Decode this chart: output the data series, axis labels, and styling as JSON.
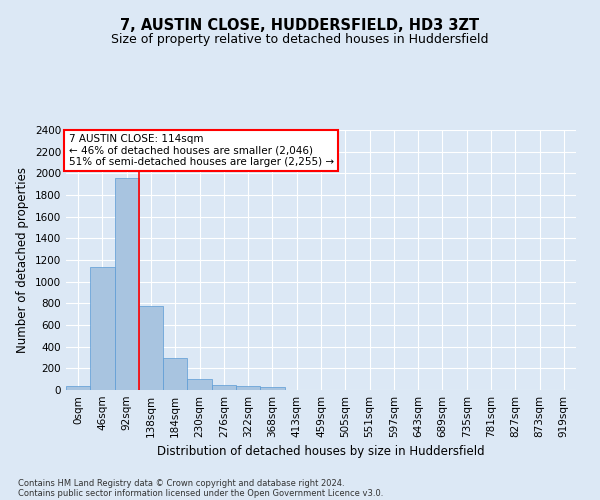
{
  "title": "7, AUSTIN CLOSE, HUDDERSFIELD, HD3 3ZT",
  "subtitle": "Size of property relative to detached houses in Huddersfield",
  "xlabel": "Distribution of detached houses by size in Huddersfield",
  "ylabel": "Number of detached properties",
  "footnote1": "Contains HM Land Registry data © Crown copyright and database right 2024.",
  "footnote2": "Contains public sector information licensed under the Open Government Licence v3.0.",
  "categories": [
    "0sqm",
    "46sqm",
    "92sqm",
    "138sqm",
    "184sqm",
    "230sqm",
    "276sqm",
    "322sqm",
    "368sqm",
    "413sqm",
    "459sqm",
    "505sqm",
    "551sqm",
    "597sqm",
    "643sqm",
    "689sqm",
    "735sqm",
    "781sqm",
    "827sqm",
    "873sqm",
    "919sqm"
  ],
  "values": [
    35,
    1135,
    1960,
    775,
    300,
    105,
    47,
    38,
    25,
    0,
    0,
    0,
    0,
    0,
    0,
    0,
    0,
    0,
    0,
    0,
    0
  ],
  "bar_color": "#a8c4e0",
  "bar_edge_color": "#5b9bd5",
  "ylim": [
    0,
    2400
  ],
  "yticks": [
    0,
    200,
    400,
    600,
    800,
    1000,
    1200,
    1400,
    1600,
    1800,
    2000,
    2200,
    2400
  ],
  "property_line_x": 2.5,
  "annotation_line1": "7 AUSTIN CLOSE: 114sqm",
  "annotation_line2": "← 46% of detached houses are smaller (2,046)",
  "annotation_line3": "51% of semi-detached houses are larger (2,255) →",
  "annotation_box_color": "#ff0000",
  "bg_color": "#dce8f5",
  "plot_bg_color": "#dce8f5",
  "grid_color": "#ffffff",
  "fig_bg_color": "#dce8f5",
  "title_fontsize": 10.5,
  "subtitle_fontsize": 9,
  "axis_label_fontsize": 8.5,
  "tick_fontsize": 7.5,
  "annotation_fontsize": 7.5,
  "footnote_fontsize": 6
}
